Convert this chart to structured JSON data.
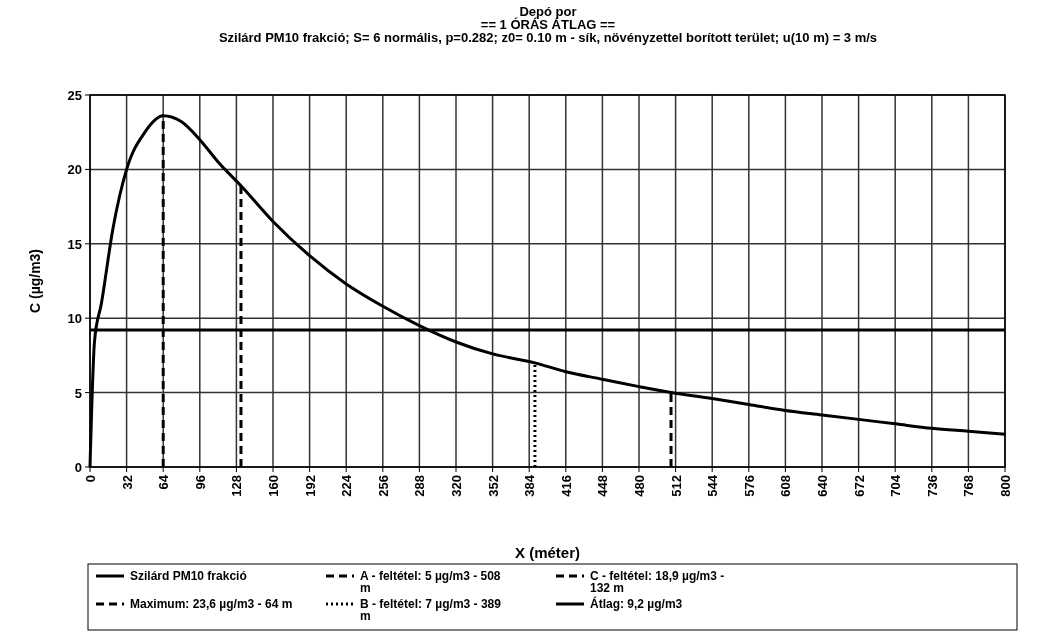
{
  "chart_data": {
    "type": "line",
    "title": "Depó por\n== 1 ÓRÁS ÁTLAG ==",
    "subtitle": "Szilárd PM10 frakció; S= 6 normális, p=0.282; z0= 0.10 m - sík, növényzettel borított terület; u(10 m) = 3 m/s",
    "xlabel": "X (méter)",
    "ylabel": "C (µg/m3)",
    "xlim": [
      0,
      800
    ],
    "xticks": [
      0,
      32,
      64,
      96,
      128,
      160,
      192,
      224,
      256,
      288,
      320,
      352,
      384,
      416,
      448,
      480,
      512,
      544,
      576,
      608,
      640,
      672,
      704,
      736,
      768,
      800
    ],
    "ylim": [
      0,
      25
    ],
    "yticks": [
      0,
      5,
      10,
      15,
      20,
      25
    ],
    "grid": true,
    "legend": "bottom",
    "marker": "none",
    "series": [
      {
        "name": "Szilárd PM10 frakció",
        "color": "#000000",
        "line_style": "solid",
        "x": [
          0,
          4,
          10,
          20,
          32,
          48,
          64,
          80,
          96,
          112,
          132,
          160,
          192,
          224,
          256,
          288,
          320,
          352,
          389,
          416,
          448,
          480,
          508,
          544,
          576,
          608,
          640,
          672,
          704,
          736,
          768,
          800
        ],
        "values": [
          0,
          8.5,
          11,
          16,
          20,
          22.5,
          23.6,
          23.2,
          22,
          20.5,
          18.9,
          16.5,
          14.2,
          12.3,
          10.8,
          9.5,
          8.4,
          7.6,
          7,
          6.4,
          5.9,
          5.4,
          5,
          4.6,
          4.2,
          3.8,
          3.5,
          3.2,
          2.9,
          2.6,
          2.4,
          2.2
        ]
      },
      {
        "name": "Maximum: 23,6 µg/m3 - 64 m",
        "color": "#000000",
        "line_style": "dashed",
        "x": [
          64,
          64
        ],
        "values": [
          0,
          23.6
        ]
      },
      {
        "name": "A - feltétel: 5 µg/m3 - 508 m",
        "color": "#000000",
        "line_style": "dashed",
        "x": [
          508,
          508
        ],
        "values": [
          0,
          5
        ]
      },
      {
        "name": "B - feltétel: 7 µg/m3 - 389 m",
        "color": "#000000",
        "line_style": "dotted",
        "x": [
          389,
          389
        ],
        "values": [
          0,
          7
        ]
      },
      {
        "name": "C - feltétel: 18,9 µg/m3 - 132 m",
        "color": "#000000",
        "line_style": "dashed",
        "x": [
          132,
          132
        ],
        "values": [
          0,
          18.9
        ]
      },
      {
        "name": "Átlag: 9,2 µg/m3",
        "color": "#000000",
        "line_style": "solid",
        "x": [
          0,
          800
        ],
        "values": [
          9.2,
          9.2
        ]
      }
    ]
  }
}
